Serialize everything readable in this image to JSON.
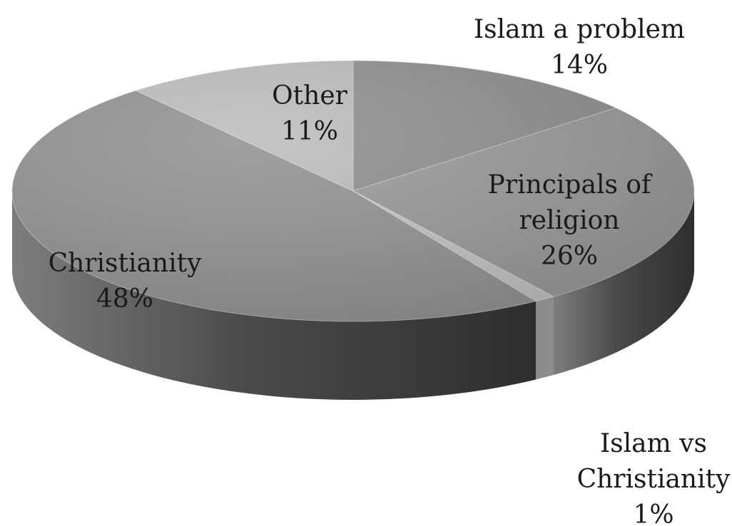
{
  "chart_data": {
    "type": "pie",
    "title": "",
    "slices": [
      {
        "key": "islam_problem",
        "label_lines": [
          "Islam a problem"
        ],
        "value": 14,
        "value_label": "14%",
        "color": "#8f8f8f"
      },
      {
        "key": "principals",
        "label_lines": [
          "Principals of",
          "religion"
        ],
        "value": 26,
        "value_label": "26%",
        "color": "#9a9a9a"
      },
      {
        "key": "islam_vs",
        "label_lines": [
          "Islam vs",
          "Christianity"
        ],
        "value": 1,
        "value_label": "1%",
        "color": "#c4c4c4"
      },
      {
        "key": "christianity",
        "label_lines": [
          "Christianity"
        ],
        "value": 48,
        "value_label": "48%",
        "color": "#939393"
      },
      {
        "key": "other",
        "label_lines": [
          "Other"
        ],
        "value": 11,
        "value_label": "11%",
        "color": "#bdbdbd"
      }
    ],
    "legend": "none",
    "labels": "outside-or-on-slice"
  }
}
